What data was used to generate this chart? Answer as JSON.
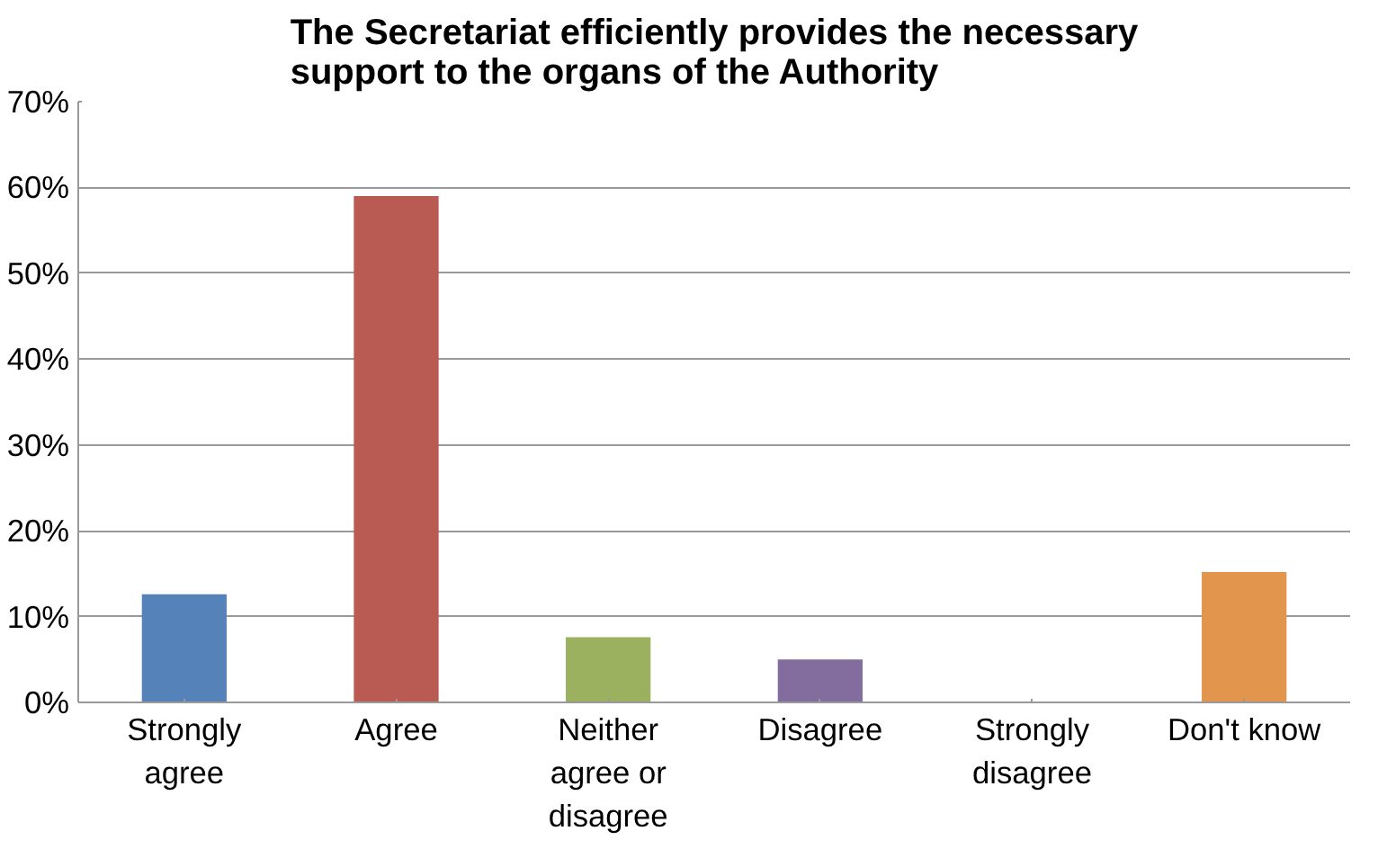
{
  "chart_data": {
    "type": "bar",
    "title": "The Secretariat efficiently provides the necessary support to the organs of the Authority",
    "categories": [
      "Strongly agree",
      "Agree",
      "Neither agree or disagree",
      "Disagree",
      "Strongly disagree",
      "Don't know"
    ],
    "values": [
      12.6,
      59,
      7.6,
      5,
      0,
      15.2
    ],
    "colors": [
      "#5582b8",
      "#b95a53",
      "#9bb160",
      "#836d9f",
      "#4bacc6",
      "#e2954d"
    ],
    "ylim": [
      0,
      70
    ],
    "yticks": [
      {
        "value": 0,
        "label": "0%"
      },
      {
        "value": 10,
        "label": "10%"
      },
      {
        "value": 20,
        "label": "20%"
      },
      {
        "value": 30,
        "label": "30%"
      },
      {
        "value": 40,
        "label": "40%"
      },
      {
        "value": 50,
        "label": "50%"
      },
      {
        "value": 60,
        "label": "60%"
      },
      {
        "value": 70,
        "label": "70%"
      }
    ],
    "grid": "y"
  }
}
